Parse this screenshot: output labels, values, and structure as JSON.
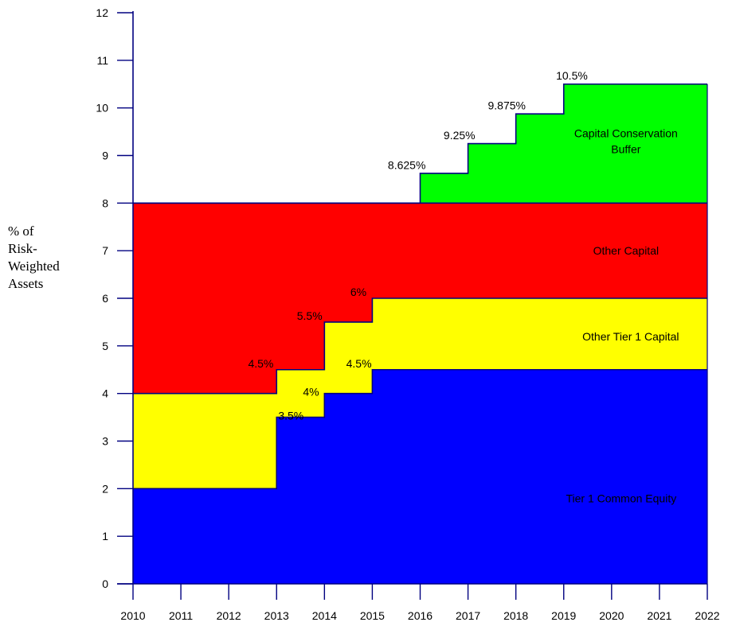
{
  "chart_data": {
    "type": "area",
    "xlabel": "",
    "ylabel_lines": [
      "% of",
      "Risk-",
      "Weighted",
      "Assets"
    ],
    "xlim": [
      2010,
      2022
    ],
    "ylim": [
      0,
      12
    ],
    "x_ticks": [
      2010,
      2011,
      2012,
      2013,
      2014,
      2015,
      2016,
      2017,
      2018,
      2019,
      2020,
      2021,
      2022
    ],
    "y_ticks": [
      0,
      1,
      2,
      3,
      4,
      5,
      6,
      7,
      8,
      9,
      10,
      11,
      12
    ],
    "grid": false,
    "legend": "none",
    "series": [
      {
        "name": "Tier 1 Common Equity",
        "color": "#0000ff",
        "steps": [
          {
            "from": 2010,
            "to": 2013,
            "bottom": 0,
            "top": 2
          },
          {
            "from": 2013,
            "to": 2014,
            "bottom": 0,
            "top": 3.5
          },
          {
            "from": 2014,
            "to": 2015,
            "bottom": 0,
            "top": 4
          },
          {
            "from": 2015,
            "to": 2022,
            "bottom": 0,
            "top": 4.5
          }
        ]
      },
      {
        "name": "Other Tier 1 Capital",
        "color": "#ffff00",
        "steps": [
          {
            "from": 2010,
            "to": 2013,
            "bottom": 2,
            "top": 4
          },
          {
            "from": 2013,
            "to": 2014,
            "bottom": 3.5,
            "top": 4.5
          },
          {
            "from": 2014,
            "to": 2015,
            "bottom": 4,
            "top": 5.5
          },
          {
            "from": 2015,
            "to": 2022,
            "bottom": 4.5,
            "top": 6
          }
        ]
      },
      {
        "name": "Other Capital",
        "color": "#ff0000",
        "steps": [
          {
            "from": 2010,
            "to": 2013,
            "bottom": 4,
            "top": 8
          },
          {
            "from": 2013,
            "to": 2014,
            "bottom": 4.5,
            "top": 8
          },
          {
            "from": 2014,
            "to": 2015,
            "bottom": 5.5,
            "top": 8
          },
          {
            "from": 2015,
            "to": 2022,
            "bottom": 6,
            "top": 8
          }
        ]
      },
      {
        "name": "Capital Conservation Buffer",
        "color": "#00ff00",
        "steps": [
          {
            "from": 2016,
            "to": 2017,
            "bottom": 8,
            "top": 8.625
          },
          {
            "from": 2017,
            "to": 2018,
            "bottom": 8,
            "top": 9.25
          },
          {
            "from": 2018,
            "to": 2019,
            "bottom": 8,
            "top": 9.875
          },
          {
            "from": 2019,
            "to": 2022,
            "bottom": 8,
            "top": 10.5
          }
        ]
      }
    ],
    "area_labels": [
      {
        "lines": [
          "Capital Conservation",
          "Buffer"
        ],
        "x": 2020.3,
        "y": 9.3
      },
      {
        "lines": [
          "Other Capital"
        ],
        "x": 2020.3,
        "y": 7
      },
      {
        "lines": [
          "Other Tier 1 Capital"
        ],
        "x": 2020.4,
        "y": 5.2
      },
      {
        "lines": [
          "Tier 1 Common Equity"
        ],
        "x": 2020.2,
        "y": 1.8
      }
    ],
    "annotations": [
      {
        "text": "3.5%",
        "x": 2013.3,
        "y": 3.45
      },
      {
        "text": "4%",
        "x": 2013.72,
        "y": 3.95
      },
      {
        "text": "4.5%",
        "x": 2012.67,
        "y": 4.55
      },
      {
        "text": "4.5%",
        "x": 2014.72,
        "y": 4.55
      },
      {
        "text": "5.5%",
        "x": 2013.69,
        "y": 5.55
      },
      {
        "text": "6%",
        "x": 2014.71,
        "y": 6.05
      },
      {
        "text": "8.625%",
        "x": 2015.72,
        "y": 8.72
      },
      {
        "text": "9.25%",
        "x": 2016.82,
        "y": 9.34
      },
      {
        "text": "9.875%",
        "x": 2017.81,
        "y": 9.97
      },
      {
        "text": "10.5%",
        "x": 2019.17,
        "y": 10.6
      }
    ]
  }
}
